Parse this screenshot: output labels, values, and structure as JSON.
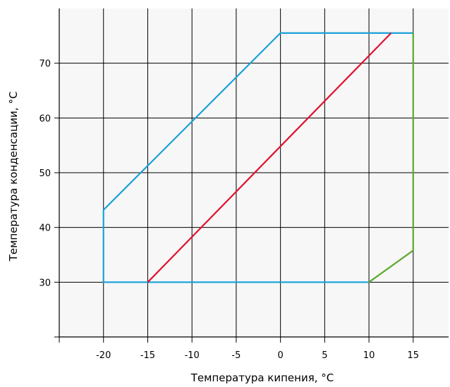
{
  "chart_data": {
    "type": "line",
    "title": "",
    "xlabel": "Температура кипения, °C",
    "ylabel": "Температура конденсации, °C",
    "xlim": [
      -25,
      19
    ],
    "ylim": [
      20,
      80
    ],
    "x_ticks": [
      -20,
      -15,
      -10,
      -5,
      0,
      5,
      10,
      15
    ],
    "y_ticks": [
      30,
      40,
      50,
      60,
      70
    ],
    "x_grid": [
      -25,
      -20,
      -15,
      -10,
      -5,
      0,
      5,
      10,
      15,
      19
    ],
    "y_grid": [
      20,
      30,
      40,
      50,
      60,
      70,
      80
    ],
    "grid": true,
    "legend": "none",
    "background": "#f7f7f7",
    "series": [
      {
        "color": "#1aa0d8",
        "points": [
          [
            10,
            30
          ],
          [
            -20,
            30
          ],
          [
            -20,
            43.2
          ],
          [
            0,
            75.5
          ],
          [
            15,
            75.5
          ]
        ]
      },
      {
        "color": "#e0102e",
        "points": [
          [
            -15,
            30
          ],
          [
            12.5,
            75.5
          ]
        ]
      },
      {
        "color": "#5aaa2a",
        "points": [
          [
            10,
            30
          ],
          [
            15,
            35.8
          ],
          [
            15,
            75.5
          ]
        ]
      }
    ]
  }
}
